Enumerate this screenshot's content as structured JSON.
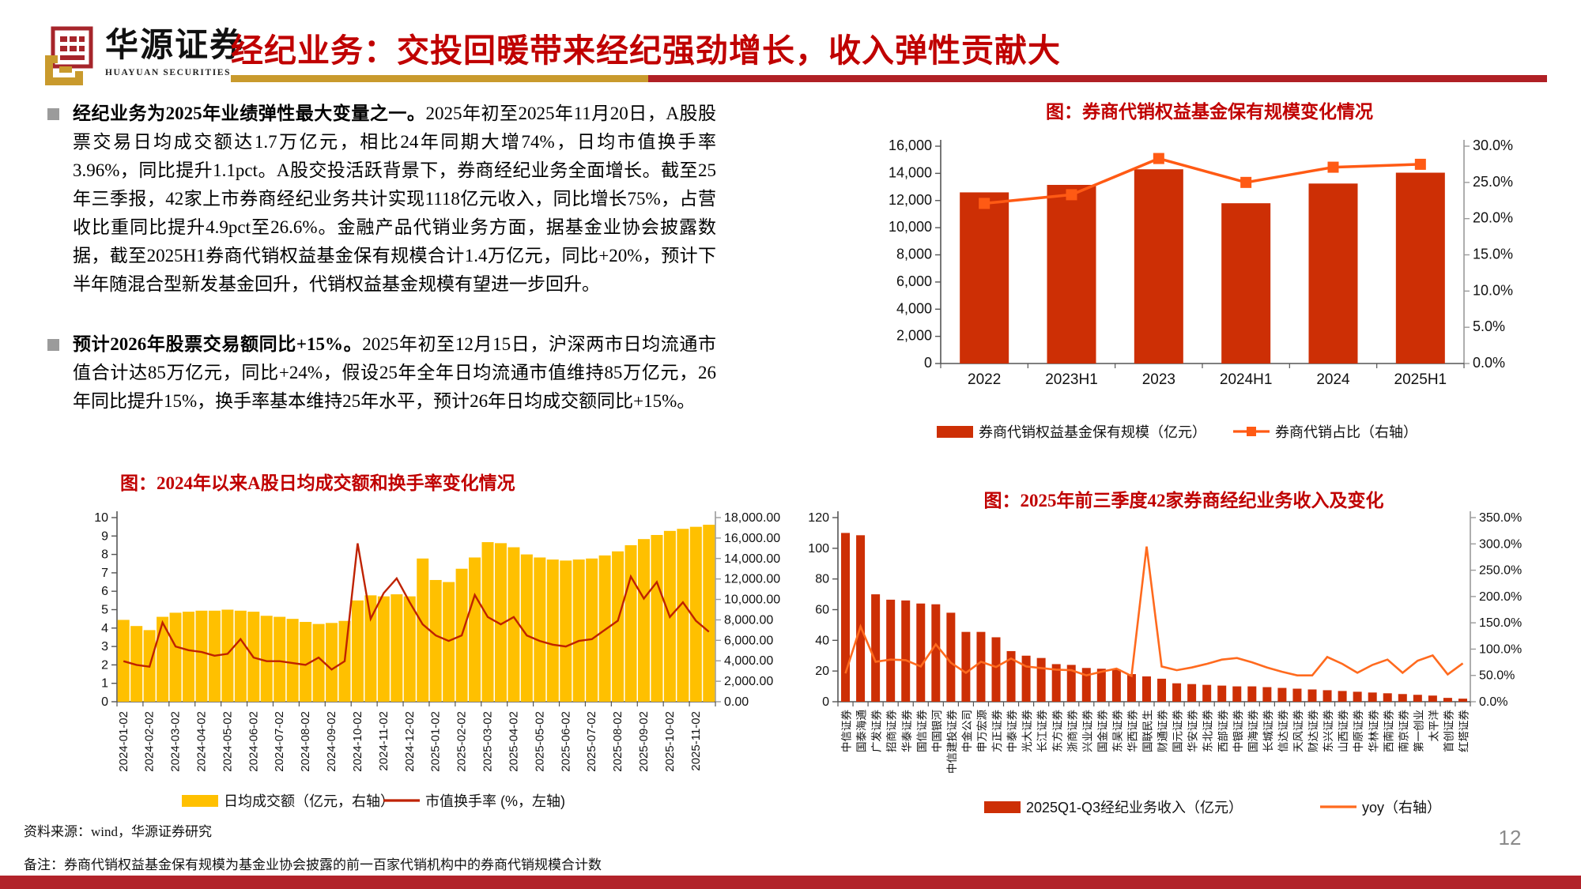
{
  "header": {
    "logo_title": "华源证券",
    "logo_subtitle": "HUAYUAN SECURITIES",
    "title": "经纪业务：交投回暖带来经纪强劲增长，收入弹性贡献大"
  },
  "bullets": [
    {
      "bold": "经纪业务为2025年业绩弹性最大变量之一。",
      "text": "2025年初至2025年11月20日，A股股票交易日均成交额达1.7万亿元，相比24年同期大增74%，日均市值换手率3.96%，同比提升1.1pct。A股交投活跃背景下，券商经纪业务全面增长。截至25年三季报，42家上市券商经纪业务共计实现1118亿元收入，同比增长75%，占营收比重同比提升4.9pct至26.6%。金融产品代销业务方面，据基金业协会披露数据，截至2025H1券商代销权益基金保有规模合计1.4万亿元，同比+20%，预计下半年随混合型新发基金回升，代销权益基金规模有望进一步回升。"
    },
    {
      "bold": "预计2026年股票交易额同比+15%。",
      "text": "2025年初至12月15日，沪深两市日均流通市值合计达85万亿元，同比+24%，假设25年全年日均流通市值维持85万亿元，26年同比提升15%，换手率基本维持25年水平，预计26年日均成交额同比+15%。"
    }
  ],
  "colors": {
    "accent_red": "#c00000",
    "vermilion_bar": "#cd2f05",
    "orange_line": "#ff5a14",
    "yellow_bar": "#ffc000",
    "dark_red_line": "#bf2200",
    "gold": "#c99a2d",
    "footer_bar": "#b2232a"
  },
  "chart_data": [
    {
      "id": "fund-scale",
      "type": "bar+line",
      "title": "图：券商代销权益基金保有规模变化情况",
      "categories": [
        "2022",
        "2023H1",
        "2023",
        "2024H1",
        "2024",
        "2025H1"
      ],
      "series": [
        {
          "name": "券商代销权益基金保有规模（亿元）",
          "type": "bar",
          "axis": "left",
          "values": [
            12600,
            13150,
            14300,
            11800,
            13250,
            14050
          ]
        },
        {
          "name": "券商代销占比（右轴）",
          "type": "line",
          "axis": "right",
          "values": [
            22.1,
            23.3,
            28.3,
            25.0,
            27.1,
            27.5
          ]
        }
      ],
      "left_axis": {
        "min": 0,
        "max": 16000,
        "labels": [
          "0",
          "2,000",
          "4,000",
          "6,000",
          "8,000",
          "10,000",
          "12,000",
          "14,000",
          "16,000"
        ]
      },
      "right_axis": {
        "min": 0,
        "max": 30,
        "labels": [
          "0.0%",
          "5.0%",
          "10.0%",
          "15.0%",
          "20.0%",
          "25.0%",
          "30.0%"
        ]
      },
      "bar_color": "#cd2f05",
      "line_color": "#ff5a14",
      "legend_position": "bottom"
    },
    {
      "id": "turnover",
      "type": "bar+line",
      "title": "图：2024年以来A股日均成交额和换手率变化情况",
      "x_labels": [
        "2024-01-02",
        "2024-02-02",
        "2024-03-02",
        "2024-04-02",
        "2024-05-02",
        "2024-06-02",
        "2024-07-02",
        "2024-08-02",
        "2024-09-02",
        "2024-10-02",
        "2024-11-02",
        "2024-12-02",
        "2025-01-02",
        "2025-02-02",
        "2025-03-02",
        "2025-04-02",
        "2025-05-02",
        "2025-06-02",
        "2025-07-02",
        "2025-08-02",
        "2025-09-02",
        "2025-10-02",
        "2025-11-02"
      ],
      "series": [
        {
          "name": "日均成交额（亿元，右轴）",
          "type": "bar",
          "axis": "right",
          "values": [
            8000,
            7400,
            7000,
            8300,
            8700,
            8800,
            8900,
            8900,
            9000,
            8900,
            8800,
            8400,
            8300,
            8100,
            7800,
            7600,
            7700,
            7900,
            9900,
            10400,
            10300,
            10500,
            10300,
            14000,
            11900,
            11700,
            13000,
            14100,
            15600,
            15500,
            15100,
            14400,
            14100,
            13900,
            13800,
            13900,
            14000,
            14300,
            14700,
            15300,
            15900,
            16300,
            16700,
            16900,
            17100,
            17300
          ]
        },
        {
          "name": "市值换手率 (%，左轴)",
          "type": "line",
          "axis": "left",
          "values": [
            2.2,
            2.0,
            1.9,
            4.3,
            3.0,
            2.8,
            2.7,
            2.5,
            2.6,
            3.4,
            2.4,
            2.2,
            2.2,
            2.1,
            2.0,
            2.4,
            1.75,
            2.2,
            8.6,
            4.5,
            5.9,
            6.7,
            5.4,
            4.2,
            3.6,
            3.3,
            3.6,
            5.8,
            4.6,
            4.2,
            4.6,
            3.6,
            3.3,
            3.1,
            3.0,
            3.3,
            3.4,
            3.9,
            4.4,
            6.8,
            5.6,
            6.5,
            4.6,
            5.4,
            4.4,
            3.8
          ]
        }
      ],
      "left_axis": {
        "min": 0,
        "max": 10,
        "labels": [
          "0",
          "1",
          "2",
          "3",
          "4",
          "5",
          "6",
          "7",
          "8",
          "9",
          "10"
        ]
      },
      "right_axis": {
        "min": 0,
        "max": 18000,
        "labels": [
          "0.00",
          "2,000.00",
          "4,000.00",
          "6,000.00",
          "8,000.00",
          "10,000.00",
          "12,000.00",
          "14,000.00",
          "16,000.00",
          "18,000.00"
        ]
      },
      "bar_color": "#ffc000",
      "line_color": "#bf2200",
      "legend_position": "bottom"
    },
    {
      "id": "brokerage",
      "type": "bar+line",
      "title": "图：2025年前三季度42家券商经纪业务收入及变化",
      "categories": [
        "中信证券",
        "国泰海通",
        "广发证券",
        "招商证券",
        "华泰证券",
        "国信证券",
        "中国银河",
        "中信建投证券",
        "中金公司",
        "申万宏源",
        "方正证券",
        "中泰证券",
        "光大证券",
        "长江证券",
        "东方证券",
        "浙商证券",
        "兴业证券",
        "国金证券",
        "东吴证券",
        "华西证券",
        "国联民生",
        "财通证券",
        "国元证券",
        "华安证券",
        "东北证券",
        "西部证券",
        "中银证券",
        "国海证券",
        "长城证券",
        "信达证券",
        "天风证券",
        "财达证券",
        "东兴证券",
        "山西证券",
        "中原证券",
        "华林证券",
        "西南证券",
        "南京证券",
        "第一创业",
        "太平洋",
        "首创证券",
        "红塔证券"
      ],
      "series": [
        {
          "name": "2025Q1-Q3经纪业务收入（亿元）",
          "type": "bar",
          "axis": "left",
          "values": [
            110,
            108.5,
            70,
            66.5,
            66,
            64,
            63.5,
            58,
            45.5,
            45.5,
            42,
            33,
            30,
            28.5,
            24.5,
            24,
            22,
            21.5,
            21,
            18,
            16.5,
            15,
            12,
            11.5,
            11,
            10.5,
            10,
            10,
            9.5,
            9,
            8.5,
            8,
            7.5,
            7,
            6.5,
            6,
            5.5,
            5,
            4.5,
            4,
            2.5,
            2
          ]
        },
        {
          "name": "yoy（右轴）",
          "type": "line",
          "axis": "right",
          "values": [
            54,
            143,
            76,
            80,
            79,
            67,
            109,
            74,
            55,
            76,
            66,
            82,
            67,
            64,
            61,
            60,
            50,
            57,
            63,
            49,
            295,
            67,
            60,
            65,
            72,
            80,
            83,
            75,
            65,
            57,
            50,
            50,
            85,
            72,
            55,
            70,
            80,
            55,
            78,
            88,
            52,
            73
          ]
        }
      ],
      "left_axis": {
        "min": 0,
        "max": 120,
        "labels": [
          "0",
          "20",
          "40",
          "60",
          "80",
          "100",
          "120"
        ]
      },
      "right_axis": {
        "min": 0,
        "max": 350,
        "labels": [
          "0.0%",
          "50.0%",
          "100.0%",
          "150.0%",
          "200.0%",
          "250.0%",
          "300.0%",
          "350.0%"
        ]
      },
      "bar_color": "#cd2f05",
      "line_color": "#ff6a1e",
      "legend_position": "bottom"
    }
  ],
  "footer": {
    "source": "资料来源：wind，华源证券研究",
    "note": "备注：券商代销权益基金保有规模为基金业协会披露的前一百家代销机构中的券商代销规模合计数",
    "page": "12"
  }
}
